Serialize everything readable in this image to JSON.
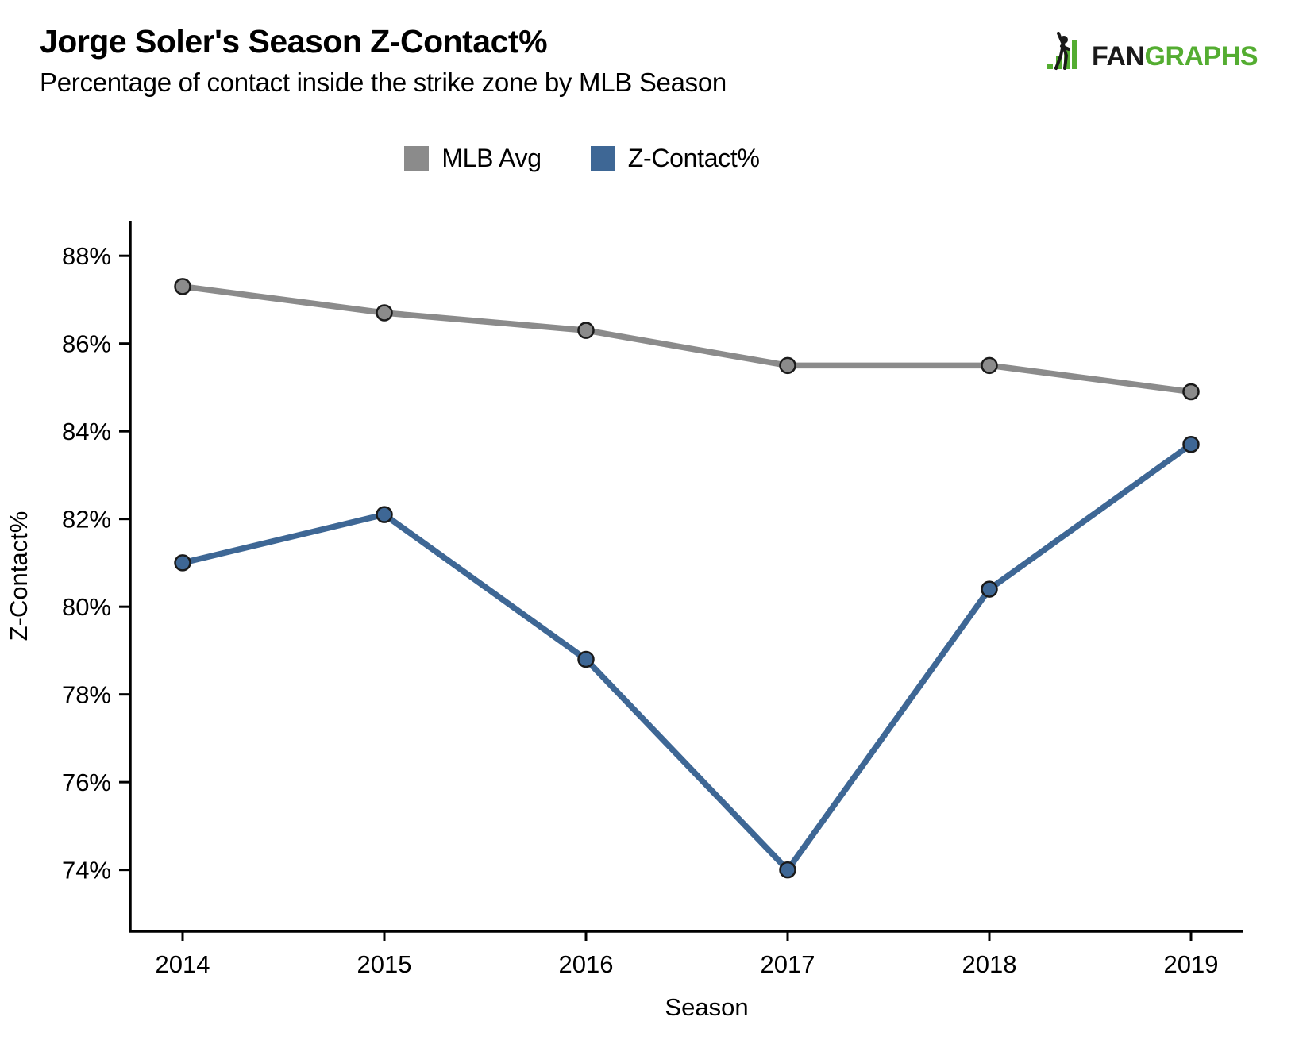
{
  "header": {
    "title": "Jorge Soler's Season Z-Contact%",
    "subtitle": "Percentage of contact inside the strike zone by MLB Season"
  },
  "logo": {
    "fan": "FAN",
    "graphs": "GRAPHS",
    "green": "#54ad31",
    "black": "#1a1a1a"
  },
  "chart_data": {
    "type": "line",
    "x": [
      2014,
      2015,
      2016,
      2017,
      2018,
      2019
    ],
    "series": [
      {
        "name": "MLB Avg",
        "color": "#8b8b8b",
        "values": [
          87.3,
          86.7,
          86.3,
          85.5,
          85.5,
          84.9
        ]
      },
      {
        "name": "Z-Contact%",
        "color": "#3e6795",
        "values": [
          81.0,
          82.1,
          78.8,
          74.0,
          80.4,
          83.7
        ]
      }
    ],
    "title": "Jorge Soler's Season Z-Contact%",
    "subtitle": "Percentage of contact inside the strike zone by MLB Season",
    "xlabel": "Season",
    "ylabel": "Z-Contact%",
    "yticks": [
      74,
      76,
      78,
      80,
      82,
      84,
      86,
      88
    ],
    "ytick_format": "{v}%",
    "ylim": [
      72.6,
      88.8
    ],
    "grid": false,
    "legend_position": "top-center",
    "marker": "circle",
    "marker_edge_color": "#1a1a1a",
    "axis_color": "#000000"
  }
}
